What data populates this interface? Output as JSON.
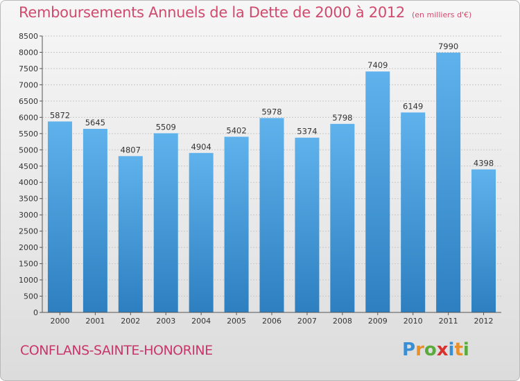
{
  "header": {
    "title": "Remboursements Annuels de la Dette de 2000 à 2012",
    "subtitle": "(en milliers d'€)"
  },
  "footer": {
    "city": "CONFLANS-SAINTE-HONORINE",
    "logo_letters": [
      {
        "char": "P",
        "color": "#3a8fd4"
      },
      {
        "char": "r",
        "color": "#e8902a"
      },
      {
        "char": "o",
        "color": "#5aac3a"
      },
      {
        "char": "x",
        "color": "#d9322e"
      },
      {
        "char": "i",
        "color": "#3a8fd4"
      },
      {
        "char": "t",
        "color": "#e8902a"
      },
      {
        "char": "i",
        "color": "#5aac3a"
      }
    ]
  },
  "colors": {
    "bar_top": "#5fb2ec",
    "bar_bottom": "#2d7fc0",
    "grid": "#c8c8c8",
    "axis": "#555555"
  },
  "chart_data": {
    "type": "bar",
    "title": "Remboursements Annuels de la Dette de 2000 à 2012",
    "subtitle": "(en milliers d'€)",
    "categories": [
      "2000",
      "2001",
      "2002",
      "2003",
      "2004",
      "2005",
      "2006",
      "2007",
      "2008",
      "2009",
      "2010",
      "2011",
      "2012"
    ],
    "values": [
      5872,
      5645,
      4807,
      5509,
      4904,
      5402,
      5978,
      5374,
      5798,
      7409,
      6149,
      7990,
      4398
    ],
    "ylim": [
      0,
      8500
    ],
    "yticks": [
      0,
      500,
      1000,
      1500,
      2000,
      2500,
      3000,
      3500,
      4000,
      4500,
      5000,
      5500,
      6000,
      6500,
      7000,
      7500,
      8000,
      8500
    ],
    "grid": true,
    "xlabel": "",
    "ylabel": ""
  }
}
